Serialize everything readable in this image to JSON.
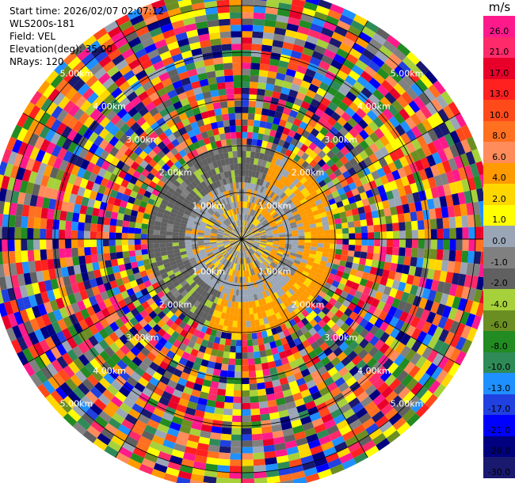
{
  "header": {
    "start_time": "Start time: 2026/02/07 02:07:12",
    "site": "WLS200s-181",
    "field": "Field: VEL",
    "elevation": "Elevation(deg): 35.00",
    "nrays": "NRays: 120"
  },
  "colorbar": {
    "unit": "m/s",
    "ticks": [
      "26.0",
      "21.0",
      "17.0",
      "13.0",
      "10.0",
      "8.0",
      "6.0",
      "4.0",
      "2.0",
      "1.0",
      "0.0",
      "-1.0",
      "-2.0",
      "-4.0",
      "-6.0",
      "-8.0",
      "-10.0",
      "-13.0",
      "-17.0",
      "-21.0",
      "-26.0",
      "-30.0"
    ],
    "colors": [
      "#ff1a8c",
      "#ff2a6a",
      "#e8002a",
      "#ff2020",
      "#ff4a1a",
      "#ff7020",
      "#ff8c5a",
      "#ff9a00",
      "#ffd700",
      "#ffff00",
      "#9aa6b6",
      "#808080",
      "#606060",
      "#a6d13a",
      "#6b8e23",
      "#228b22",
      "#2e8b57",
      "#1e90ff",
      "#2040e0",
      "#0000ff",
      "#000080",
      "#191970"
    ]
  },
  "chart_data": {
    "type": "heatmap",
    "projection": "polar-ppi",
    "field": "VEL",
    "units": "m/s",
    "n_rays": 120,
    "elevation_deg": 35.0,
    "range_rings_km": [
      1.0,
      2.0,
      3.0,
      4.0,
      5.0
    ],
    "range_ring_labels": [
      "1.00km",
      "2.00km",
      "3.00km",
      "4.00km",
      "5.00km"
    ],
    "max_range_km": 5.4,
    "value_range": [
      -30.0,
      26.0
    ],
    "regions": [
      {
        "range_km": [
          0.0,
          1.0
        ],
        "dominant_values": [
          0.0,
          -1.0,
          4.0
        ]
      },
      {
        "range_km": [
          1.0,
          2.0
        ],
        "dominant_values": [
          -2.0,
          0.0,
          4.0
        ]
      },
      {
        "range_km": [
          2.0,
          5.4
        ],
        "dominant_values": "noise (all bins)"
      }
    ]
  }
}
